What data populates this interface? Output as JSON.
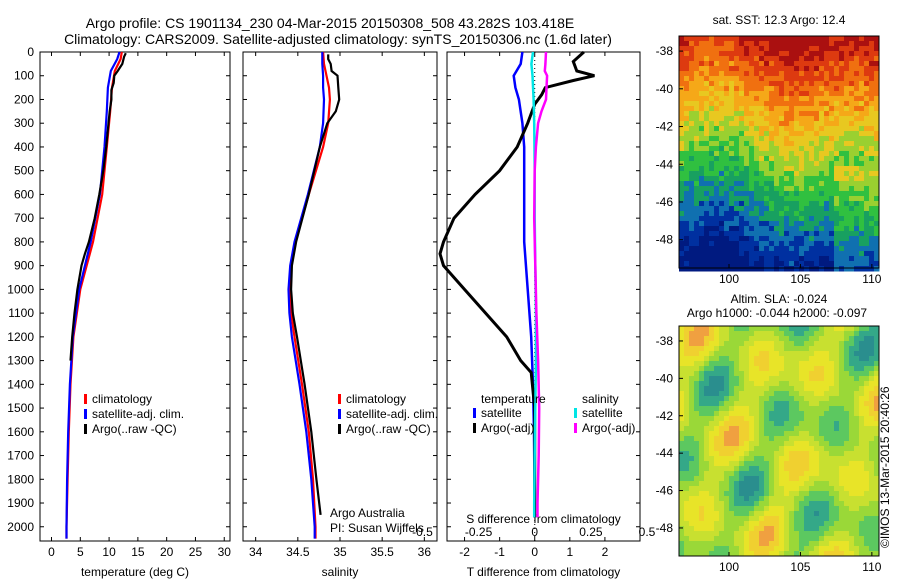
{
  "header": {
    "line1": "Argo profile: CS 1901134_230 04-Mar-2015 20150308_508 43.282S 103.418E",
    "line2": "Climatology: CARS2009. Satellite-adjusted climatology: synTS_20150306.nc (1.6d later)"
  },
  "colors": {
    "climatology": "#ff0000",
    "satellite_clim": "#0000ff",
    "argo": "#000000",
    "salinity_satellite": "#00e5e5",
    "salinity_argo": "#ff00ff"
  },
  "chart_data": [
    {
      "id": "temperature",
      "type": "line",
      "xlabel": "temperature (deg C)",
      "xlim": [
        -2,
        31
      ],
      "xticks": [
        "0",
        "5",
        "10",
        "15",
        "20",
        "25",
        "30"
      ],
      "ylim": [
        2060,
        0
      ],
      "yticks": [
        "0",
        "100",
        "200",
        "300",
        "400",
        "500",
        "600",
        "700",
        "800",
        "900",
        "1000",
        "1100",
        "1200",
        "1300",
        "1400",
        "1500",
        "1600",
        "1700",
        "1800",
        "1900",
        "2000"
      ],
      "legend": [
        "climatology",
        "satellite-adj. clim.",
        "Argo(..raw -QC)"
      ],
      "series": [
        {
          "name": "climatology",
          "depth": [
            0,
            30,
            80,
            150,
            250,
            400,
            600,
            800,
            1000,
            1200,
            1400,
            1600,
            1800,
            2000,
            2050
          ],
          "x": [
            12.2,
            12.0,
            11.0,
            10.5,
            10.2,
            9.6,
            8.8,
            7.2,
            5.0,
            3.8,
            3.3,
            3.0,
            2.8,
            2.6,
            2.6
          ]
        },
        {
          "name": "satellite-adj. clim.",
          "depth": [
            0,
            30,
            80,
            150,
            250,
            400,
            600,
            800,
            1000,
            1200,
            1400,
            1600,
            1800,
            2000,
            2050
          ],
          "x": [
            11.8,
            11.4,
            10.3,
            9.8,
            9.6,
            9.2,
            8.4,
            6.8,
            4.8,
            3.7,
            3.2,
            2.9,
            2.7,
            2.6,
            2.6
          ]
        },
        {
          "name": "Argo(..raw -QC)",
          "depth": [
            5,
            20,
            50,
            80,
            100,
            130,
            160,
            200,
            250,
            300,
            400,
            500,
            600,
            700,
            800,
            850,
            900,
            1000,
            1100,
            1200,
            1300
          ],
          "x": [
            12.9,
            12.6,
            12.3,
            11.5,
            10.9,
            10.8,
            10.4,
            10.4,
            10.1,
            9.9,
            9.5,
            9.0,
            8.3,
            7.5,
            6.5,
            5.8,
            5.2,
            4.5,
            4.0,
            3.6,
            3.3
          ]
        }
      ]
    },
    {
      "id": "salinity",
      "type": "line",
      "xlabel": "salinity",
      "xlim": [
        33.85,
        36.15
      ],
      "xticks": [
        "34",
        "34.5",
        "35",
        "35.5",
        "36"
      ],
      "ylim": [
        2060,
        0
      ],
      "legend": [
        "climatology",
        "satellite-adj. clim.",
        "Argo(..raw -QC)"
      ],
      "annotation": [
        "Argo Australia",
        "PI: Susan Wijffels"
      ],
      "series": [
        {
          "name": "climatology",
          "depth": [
            0,
            50,
            100,
            150,
            200,
            300,
            400,
            600,
            800,
            900,
            1000,
            1100,
            1200,
            1400,
            1600,
            1800,
            2000,
            2050
          ],
          "x": [
            34.8,
            34.81,
            34.84,
            34.87,
            34.88,
            34.86,
            34.8,
            34.63,
            34.47,
            34.42,
            34.41,
            34.42,
            34.46,
            34.55,
            34.63,
            34.68,
            34.71,
            34.71
          ]
        },
        {
          "name": "satellite-adj. clim.",
          "depth": [
            0,
            50,
            100,
            150,
            200,
            300,
            400,
            600,
            800,
            900,
            1000,
            1100,
            1200,
            1400,
            1600,
            1800,
            2000,
            2050
          ],
          "x": [
            34.79,
            34.79,
            34.8,
            34.8,
            34.81,
            34.8,
            34.76,
            34.62,
            34.46,
            34.41,
            34.39,
            34.4,
            34.43,
            34.52,
            34.6,
            34.66,
            34.7,
            34.7
          ]
        },
        {
          "name": "Argo(..raw -QC)",
          "depth": [
            10,
            30,
            50,
            80,
            100,
            150,
            200,
            250,
            300,
            400,
            600,
            800,
            900,
            1000,
            1100,
            1200,
            1400,
            1600,
            1800,
            1950
          ],
          "x": [
            34.86,
            34.86,
            34.89,
            34.9,
            34.97,
            34.98,
            34.99,
            34.95,
            34.85,
            34.76,
            34.63,
            34.48,
            34.43,
            34.42,
            34.44,
            34.49,
            34.58,
            34.66,
            34.72,
            34.77
          ]
        }
      ]
    },
    {
      "id": "difference",
      "type": "line",
      "xlabel": "T difference from climatology",
      "xlabel_top": "S difference from climatology",
      "xlim": [
        -2.5,
        3
      ],
      "xticks": [
        "-2",
        "-1",
        "0",
        "1",
        "2"
      ],
      "xticks_top": [
        "-0.5",
        "-0.25",
        "0",
        "0.25",
        "0.5"
      ],
      "ylim": [
        2060,
        0
      ],
      "legend": {
        "temperature": {
          "title": "temperature",
          "items": [
            "satellite",
            "Argo(-adj)"
          ]
        },
        "salinity": {
          "title": "salinity",
          "items": [
            "satellite",
            "Argo(-adj)"
          ]
        }
      },
      "series": [
        {
          "name": "temperature satellite",
          "depth": [
            0,
            50,
            100,
            150,
            200,
            300,
            400,
            600,
            800,
            1000,
            1200,
            1400,
            1600,
            1800,
            1960
          ],
          "x": [
            -0.35,
            -0.4,
            -0.6,
            -0.55,
            -0.45,
            -0.35,
            -0.3,
            -0.3,
            -0.3,
            -0.2,
            -0.1,
            -0.05,
            -0.02,
            -0.01,
            0
          ]
        },
        {
          "name": "temperature Argo(-adj)",
          "depth": [
            0,
            40,
            80,
            100,
            120,
            150,
            180,
            220,
            300,
            400,
            500,
            600,
            700,
            800,
            850,
            900,
            1000,
            1100,
            1200,
            1300,
            1350,
            1500,
            1700,
            1960
          ],
          "x": [
            1.4,
            1.1,
            1.2,
            1.7,
            1.1,
            0.3,
            0.2,
            0.0,
            -0.2,
            -0.5,
            -1.0,
            -1.7,
            -2.3,
            -2.6,
            -2.7,
            -2.6,
            -2.0,
            -1.4,
            -0.8,
            -0.4,
            -0.1,
            0.0,
            0.0,
            0.0
          ]
        },
        {
          "name": "salinity satellite",
          "depth": [
            0,
            50,
            100,
            200,
            300,
            500,
            700,
            900,
            1100,
            1300,
            1500,
            1700,
            1900,
            1960
          ],
          "x": [
            -0.03,
            -0.06,
            -0.04,
            -0.02,
            -0.01,
            0,
            0,
            0.01,
            0.02,
            0.02,
            0.01,
            0.0,
            -0.01,
            -0.01
          ]
        },
        {
          "name": "salinity Argo(-adj)",
          "depth": [
            0,
            50,
            80,
            100,
            150,
            200,
            250,
            300,
            400,
            500,
            700,
            900,
            1100,
            1300,
            1500,
            1700,
            1900,
            1960
          ],
          "x": [
            0.2,
            0.19,
            0.18,
            0.22,
            0.21,
            0.2,
            0.12,
            0.06,
            0.02,
            0.0,
            -0.01,
            0.01,
            0.03,
            0.06,
            0.08,
            0.07,
            0.05,
            0.05
          ]
        }
      ]
    },
    {
      "id": "sst_map",
      "type": "heatmap",
      "title": "sat. SST: 12.3  Argo: 12.4",
      "xlim": [
        96.5,
        110.5
      ],
      "xticks": [
        "100",
        "105",
        "110"
      ],
      "ylim": [
        -49.5,
        -37.2
      ],
      "yticks": [
        "-38",
        "-40",
        "-42",
        "-44",
        "-46",
        "-48"
      ]
    },
    {
      "id": "sla_map",
      "type": "heatmap",
      "title": "Altim. SLA: -0.024",
      "subtitle": "Argo h1000: -0.044 h2000: -0.097",
      "xlim": [
        96.5,
        110.5
      ],
      "xticks": [
        "100",
        "105",
        "110"
      ],
      "ylim": [
        -49.5,
        -37.2
      ],
      "yticks": [
        "-38",
        "-40",
        "-42",
        "-44",
        "-46",
        "-48"
      ],
      "side_label": "©IMOS 13-Mar-2015 20:40:26"
    }
  ]
}
